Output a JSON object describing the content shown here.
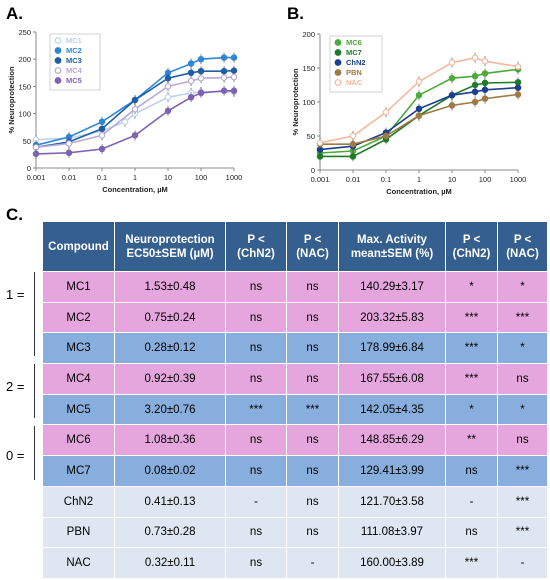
{
  "panels": {
    "a": "A.",
    "b": "B.",
    "c": "C."
  },
  "chart_data": [
    {
      "type": "line",
      "title": "",
      "xlabel": "Concentration, µM",
      "ylabel": "% Neuroprotection",
      "xscale": "log",
      "xlim": [
        0.001,
        1000
      ],
      "ylim": [
        0,
        250
      ],
      "xticks": [
        "0.001",
        "0.01",
        "0.1",
        "1",
        "10",
        "100",
        "1000"
      ],
      "yticks": [
        "0",
        "50",
        "100",
        "150",
        "200",
        "250"
      ],
      "legend_position": "top-left",
      "series": [
        {
          "name": "MC1",
          "color": "#bcd3ee",
          "marker": "open",
          "x": [
            0.001,
            0.01,
            0.1,
            0.5,
            1,
            10,
            50,
            100,
            1000
          ],
          "y": [
            52,
            55,
            68,
            85,
            100,
            130,
            138,
            140,
            140
          ]
        },
        {
          "name": "MC2",
          "color": "#2e86d8",
          "marker": "filled",
          "x": [
            0.001,
            0.01,
            0.1,
            1,
            10,
            50,
            100,
            500,
            1000
          ],
          "y": [
            42,
            57,
            85,
            125,
            175,
            192,
            200,
            203,
            203
          ]
        },
        {
          "name": "MC3",
          "color": "#1f5ea8",
          "marker": "filled",
          "x": [
            0.001,
            0.01,
            0.1,
            1,
            10,
            50,
            100,
            500,
            1000
          ],
          "y": [
            38,
            48,
            72,
            125,
            165,
            175,
            178,
            178,
            179
          ]
        },
        {
          "name": "MC4",
          "color": "#b8a9d6",
          "marker": "open",
          "x": [
            0.001,
            0.01,
            0.1,
            1,
            10,
            50,
            100,
            500,
            1000
          ],
          "y": [
            38,
            45,
            60,
            108,
            150,
            160,
            165,
            166,
            167
          ]
        },
        {
          "name": "MC5",
          "color": "#7e63b3",
          "marker": "filled",
          "x": [
            0.001,
            0.01,
            0.1,
            1,
            10,
            50,
            100,
            500,
            1000
          ],
          "y": [
            26,
            28,
            35,
            60,
            105,
            130,
            138,
            142,
            142
          ]
        }
      ]
    },
    {
      "type": "line",
      "title": "",
      "xlabel": "Concentration, µM",
      "ylabel": "% Neuroprotection",
      "xscale": "log",
      "xlim": [
        0.001,
        1000
      ],
      "ylim": [
        0,
        200
      ],
      "xticks": [
        "0.001",
        "0.01",
        "0.1",
        "1",
        "10",
        "100",
        "1000"
      ],
      "yticks": [
        "0",
        "50",
        "100",
        "150",
        "200"
      ],
      "legend_position": "top-left",
      "series": [
        {
          "name": "MC6",
          "color": "#4caa3a",
          "marker": "filled",
          "x": [
            0.001,
            0.01,
            0.1,
            1,
            10,
            50,
            100,
            1000
          ],
          "y": [
            25,
            28,
            50,
            110,
            135,
            138,
            142,
            148
          ]
        },
        {
          "name": "MC7",
          "color": "#1d7a27",
          "marker": "filled",
          "x": [
            0.001,
            0.01,
            0.1,
            1,
            10,
            50,
            100,
            1000
          ],
          "y": [
            20,
            20,
            45,
            80,
            110,
            125,
            128,
            129
          ]
        },
        {
          "name": "ChN2",
          "color": "#1a3f8f",
          "marker": "filled",
          "x": [
            0.001,
            0.01,
            0.1,
            1,
            10,
            50,
            100,
            1000
          ],
          "y": [
            30,
            35,
            55,
            90,
            110,
            115,
            118,
            121
          ]
        },
        {
          "name": "PBN",
          "color": "#a07a45",
          "marker": "filled",
          "x": [
            0.001,
            0.01,
            0.1,
            1,
            10,
            50,
            100,
            1000
          ],
          "y": [
            38,
            38,
            50,
            80,
            95,
            100,
            105,
            111
          ]
        },
        {
          "name": "NAC",
          "color": "#f4b79c",
          "marker": "open",
          "x": [
            0.001,
            0.01,
            0.1,
            1,
            10,
            50,
            100,
            1000
          ],
          "y": [
            40,
            50,
            85,
            130,
            158,
            165,
            160,
            152
          ]
        }
      ]
    },
    {
      "type": "table",
      "columns": [
        "Compound",
        "Neuroprotection EC50±SEM (µM)",
        "P < (ChN2)",
        "P < (NAC)",
        "Max. Activity mean±SEM (%)",
        "P < (ChN2)",
        "P < (NAC)"
      ],
      "rows": [
        [
          "MC1",
          "1.53±0.48",
          "ns",
          "ns",
          "140.29±3.17",
          "*",
          "*"
        ],
        [
          "MC2",
          "0.75±0.24",
          "ns",
          "ns",
          "203.32±5.83",
          "***",
          "***"
        ],
        [
          "MC3",
          "0.28±0.12",
          "ns",
          "ns",
          "178.99±6.84",
          "***",
          "*"
        ],
        [
          "MC4",
          "0.92±0.39",
          "ns",
          "ns",
          "167.55±6.08",
          "***",
          "ns"
        ],
        [
          "MC5",
          "3.20±0.76",
          "***",
          "***",
          "142.05±4.35",
          "*",
          "*"
        ],
        [
          "MC6",
          "1.08±0.36",
          "ns",
          "ns",
          "148.85±6.29",
          "**",
          "ns"
        ],
        [
          "MC7",
          "0.08±0.02",
          "ns",
          "ns",
          "129.41±3.99",
          "ns",
          "***"
        ],
        [
          "ChN2",
          "0.41±0.13",
          "-",
          "ns",
          "121.70±3.58",
          "-",
          "***"
        ],
        [
          "PBN",
          "0.73±0.28",
          "ns",
          "ns",
          "111.08±3.97",
          "ns",
          "***"
        ],
        [
          "NAC",
          "0.32±0.11",
          "ns",
          "-",
          "160.00±3.89",
          "***",
          "-"
        ]
      ],
      "row_colors": [
        "#e5a6dd",
        "#e5a6dd",
        "#87aedd",
        "#e5a6dd",
        "#87aedd",
        "#e5a6dd",
        "#87aedd",
        "#dde6f1",
        "#dde6f1",
        "#dde6f1"
      ],
      "groups": [
        "1 =",
        "2 =",
        "0 ="
      ]
    }
  ],
  "table_head": {
    "compound": "Compound",
    "ec50_l1": "Neuroprotection",
    "ec50_l2": "EC50±SEM (µM)",
    "p1_l1": "P <",
    "p1_l2": "(ChN2)",
    "p2_l1": "P <",
    "p2_l2": "(NAC)",
    "max_l1": "Max. Activity",
    "max_l2": "mean±SEM (%)",
    "p3_l1": "P <",
    "p3_l2": "(ChN2)",
    "p4_l1": "P <",
    "p4_l2": "(NAC)"
  }
}
